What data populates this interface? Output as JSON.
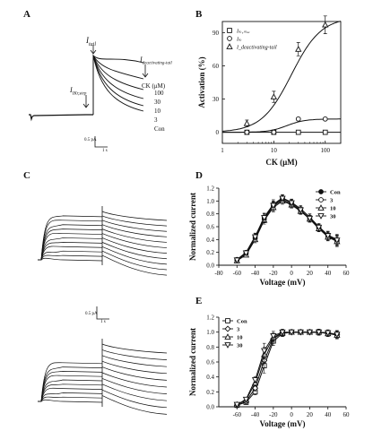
{
  "figure": {
    "panel_labels": {
      "a": "A",
      "b": "B",
      "c": "C",
      "d": "D",
      "e": "E"
    }
  },
  "panel_a": {
    "annotations": {
      "i_kr_tail": "I",
      "i_kr_tail_sub": "tail",
      "i_kr_step": "I",
      "i_kr_step_sub": "IKr,step",
      "i_deact": "I",
      "i_deact_sub": "deactivating-tail",
      "ck_unit": "CK (μM)"
    },
    "concentrations": [
      "100",
      "30",
      "10",
      "3",
      "Con"
    ],
    "scale_current": "0.5 pA",
    "scale_time": "1 s"
  },
  "panel_c": {
    "scale_current": "0.5 pA",
    "scale_time": "1 s"
  },
  "chart_data": [
    {
      "panel": "B",
      "type": "scatter",
      "xlabel": "CK (μM)",
      "ylabel": "Activation (%)",
      "xscale": "log",
      "xlim": [
        1,
        200
      ],
      "ylim": [
        -10,
        100
      ],
      "xticks": [
        "1",
        "10",
        "100"
      ],
      "yticks": [
        "0",
        "30",
        "60",
        "90"
      ],
      "legend": [
        "Iₖᵣ,ₘₐₓ",
        "Iₖᵣ",
        "I_deactivating-tail"
      ],
      "legend_placement": "top-left",
      "series": [
        {
          "name": "Iₖᵣ,ₘₐₓ",
          "marker": "square",
          "x": [
            3,
            10,
            30,
            100
          ],
          "y": [
            0,
            0,
            0,
            0
          ],
          "fit": "flat"
        },
        {
          "name": "Iₖᵣ",
          "marker": "circle",
          "x": [
            3,
            10,
            30,
            100
          ],
          "y": [
            0,
            0,
            12,
            12
          ],
          "fit": "hill-low"
        },
        {
          "name": "I_deactivating-tail",
          "marker": "triangle",
          "x": [
            3,
            10,
            30,
            100
          ],
          "y": [
            8,
            32,
            75,
            97
          ],
          "err": [
            3,
            5,
            6,
            8
          ],
          "fit": "hill"
        }
      ]
    },
    {
      "panel": "D",
      "type": "line",
      "xlabel": "Voltage (mV)",
      "ylabel": "Normalized current",
      "xlim": [
        -80,
        60
      ],
      "ylim": [
        0,
        1.2
      ],
      "xticks": [
        "-80",
        "-60",
        "-40",
        "-20",
        "0",
        "20",
        "40",
        "60"
      ],
      "yticks": [
        "0.0",
        "0.2",
        "0.4",
        "0.6",
        "0.8",
        "1.0",
        "1.2"
      ],
      "legend": [
        "Con",
        "3",
        "10",
        "30"
      ],
      "legend_placement": "top-right",
      "x": [
        -60,
        -50,
        -40,
        -30,
        -20,
        -10,
        0,
        10,
        20,
        30,
        40,
        50
      ],
      "series": [
        {
          "name": "Con",
          "marker": "filled-circle",
          "values": [
            0.08,
            0.18,
            0.42,
            0.72,
            0.92,
            1.02,
            0.95,
            0.85,
            0.72,
            0.58,
            0.45,
            0.38
          ],
          "err": [
            0.02,
            0.03,
            0.05,
            0.06,
            0.07,
            0.05,
            0.05,
            0.05,
            0.05,
            0.05,
            0.06,
            0.08
          ]
        },
        {
          "name": "3",
          "marker": "open-circle",
          "values": [
            0.09,
            0.2,
            0.45,
            0.75,
            0.95,
            1.05,
            0.98,
            0.88,
            0.75,
            0.6,
            0.47,
            0.4
          ],
          "err": [
            0.02,
            0.03,
            0.05,
            0.06,
            0.07,
            0.05,
            0.05,
            0.05,
            0.05,
            0.05,
            0.06,
            0.08
          ]
        },
        {
          "name": "10",
          "marker": "triangle",
          "values": [
            0.07,
            0.16,
            0.4,
            0.7,
            0.9,
            1.0,
            0.94,
            0.84,
            0.72,
            0.57,
            0.44,
            0.37
          ],
          "err": [
            0.02,
            0.03,
            0.05,
            0.06,
            0.07,
            0.05,
            0.05,
            0.05,
            0.05,
            0.05,
            0.06,
            0.08
          ]
        },
        {
          "name": "30",
          "marker": "inverted-triangle",
          "values": [
            0.08,
            0.19,
            0.44,
            0.74,
            0.93,
            1.04,
            0.97,
            0.86,
            0.73,
            0.59,
            0.46,
            0.39
          ],
          "err": [
            0.02,
            0.03,
            0.05,
            0.06,
            0.07,
            0.05,
            0.05,
            0.05,
            0.05,
            0.05,
            0.06,
            0.08
          ]
        }
      ]
    },
    {
      "panel": "E",
      "type": "line",
      "xlabel": "Voltage (mV)",
      "ylabel": "Normalized current",
      "xlim": [
        -80,
        60
      ],
      "ylim": [
        0,
        1.2
      ],
      "xticks": [
        "-60",
        "-40",
        "-20",
        "0",
        "20",
        "40",
        "60"
      ],
      "yticks": [
        "0.0",
        "0.2",
        "0.4",
        "0.6",
        "0.8",
        "1.0",
        "1.2"
      ],
      "legend": [
        "Con",
        "3",
        "10",
        "30"
      ],
      "legend_placement": "top-left",
      "x": [
        -60,
        -50,
        -40,
        -30,
        -20,
        -10,
        0,
        10,
        20,
        30,
        40,
        50
      ],
      "series": [
        {
          "name": "Con",
          "marker": "square",
          "values": [
            0.02,
            0.06,
            0.2,
            0.55,
            0.88,
            0.98,
            1.0,
            1.0,
            1.0,
            1.0,
            0.98,
            0.97
          ],
          "err": [
            0.01,
            0.02,
            0.04,
            0.1,
            0.06,
            0.04,
            0.03,
            0.03,
            0.03,
            0.04,
            0.04,
            0.05
          ]
        },
        {
          "name": "3",
          "marker": "diamond",
          "values": [
            0.02,
            0.07,
            0.25,
            0.62,
            0.91,
            0.99,
            1.0,
            1.0,
            1.0,
            1.0,
            0.99,
            0.97
          ],
          "err": [
            0.01,
            0.02,
            0.04,
            0.1,
            0.06,
            0.04,
            0.03,
            0.03,
            0.03,
            0.04,
            0.04,
            0.05
          ]
        },
        {
          "name": "10",
          "marker": "triangle",
          "values": [
            0.03,
            0.09,
            0.32,
            0.7,
            0.93,
            0.99,
            1.0,
            1.0,
            1.0,
            1.0,
            0.98,
            0.96
          ],
          "err": [
            0.01,
            0.02,
            0.04,
            0.1,
            0.06,
            0.04,
            0.03,
            0.03,
            0.03,
            0.04,
            0.04,
            0.05
          ]
        },
        {
          "name": "30",
          "marker": "inverted-triangle",
          "values": [
            0.03,
            0.1,
            0.36,
            0.75,
            0.95,
            1.0,
            1.0,
            1.0,
            1.0,
            1.0,
            0.99,
            0.97
          ],
          "err": [
            0.01,
            0.02,
            0.04,
            0.1,
            0.06,
            0.04,
            0.03,
            0.03,
            0.03,
            0.04,
            0.04,
            0.05
          ]
        }
      ]
    }
  ]
}
